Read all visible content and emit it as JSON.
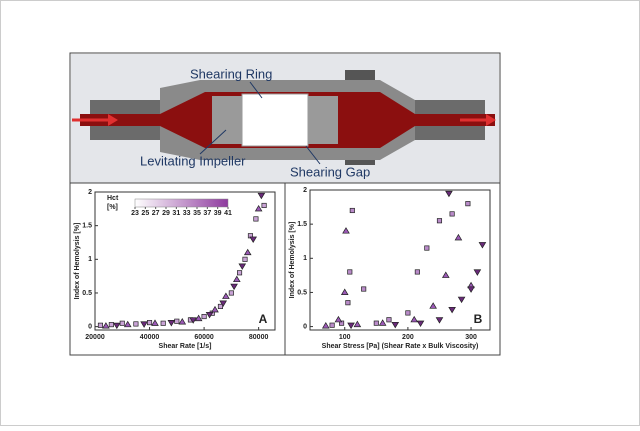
{
  "diagram": {
    "labels": [
      "Shearing Ring",
      "Levitating Impeller",
      "Shearing Gap"
    ]
  },
  "chart_data": [
    {
      "type": "scatter",
      "panel": "A",
      "x_label": "Shear Rate [1/s]",
      "y_label": "Index of Hemolysis [%]",
      "xlim": [
        20000,
        86000
      ],
      "xticks": [
        20000,
        40000,
        60000,
        80000
      ],
      "ylim": [
        -0.05,
        2
      ],
      "yticks": [
        0,
        0.5,
        1,
        1.5,
        2
      ],
      "colorbar": {
        "label": "Hct",
        "unit": "[%]",
        "ticks": [
          23,
          25,
          27,
          29,
          31,
          33,
          35,
          37,
          39,
          41
        ],
        "colors": [
          "#ffffff",
          "#8e3a9e"
        ]
      },
      "series": [
        {
          "marker": "square",
          "color": "#c9a3d6",
          "x": [
            22000,
            26000,
            30000,
            35000,
            40000,
            45000,
            50000,
            55000,
            60000,
            63000,
            66000,
            70000,
            73000,
            75000,
            77000,
            79000,
            82000
          ],
          "values": [
            0.02,
            0.03,
            0.05,
            0.04,
            0.06,
            0.05,
            0.08,
            0.1,
            0.15,
            0.2,
            0.3,
            0.5,
            0.8,
            1.0,
            1.35,
            1.6,
            1.8
          ]
        },
        {
          "marker": "triangle",
          "color": "#9b59b6",
          "x": [
            24000,
            32000,
            42000,
            52000,
            58000,
            64000,
            68000,
            72000,
            76000,
            80000
          ],
          "values": [
            0.01,
            0.03,
            0.05,
            0.07,
            0.12,
            0.25,
            0.45,
            0.7,
            1.1,
            1.75
          ]
        },
        {
          "marker": "triangle-down",
          "color": "#6a2a7a",
          "x": [
            28000,
            38000,
            48000,
            56000,
            62000,
            67000,
            71000,
            74000,
            78000,
            81000
          ],
          "values": [
            0.02,
            0.04,
            0.06,
            0.1,
            0.18,
            0.35,
            0.6,
            0.9,
            1.3,
            1.95
          ]
        }
      ]
    },
    {
      "type": "scatter",
      "panel": "B",
      "x_label": "Shear Stress [Pa] (Shear Rate x Bulk Viscosity)",
      "y_label": "Index of Hemolysis [%]",
      "xlim": [
        45,
        330
      ],
      "xticks": [
        100,
        200,
        300
      ],
      "ylim": [
        -0.05,
        2
      ],
      "yticks": [
        0,
        0.5,
        1,
        1.5,
        2
      ],
      "series": [
        {
          "marker": "square",
          "color": "#b98bc9",
          "x": [
            80,
            95,
            105,
            108,
            112,
            130,
            150,
            170,
            200,
            215,
            230,
            250,
            270,
            295
          ],
          "values": [
            0.02,
            0.05,
            0.35,
            0.8,
            1.7,
            0.55,
            0.05,
            0.1,
            0.2,
            0.8,
            1.15,
            1.55,
            1.65,
            1.8
          ]
        },
        {
          "marker": "triangle",
          "color": "#9b59b6",
          "x": [
            70,
            90,
            100,
            102,
            120,
            160,
            210,
            240,
            260,
            280,
            300
          ],
          "values": [
            0.01,
            0.1,
            0.5,
            1.4,
            0.03,
            0.05,
            0.1,
            0.3,
            0.75,
            1.3,
            0.6
          ]
        },
        {
          "marker": "triangle-down",
          "color": "#6a2a7a",
          "x": [
            110,
            180,
            220,
            250,
            270,
            285,
            300,
            310,
            318,
            265
          ],
          "values": [
            0.02,
            0.03,
            0.05,
            0.1,
            0.25,
            0.4,
            0.55,
            0.8,
            1.2,
            1.95
          ]
        }
      ]
    }
  ]
}
